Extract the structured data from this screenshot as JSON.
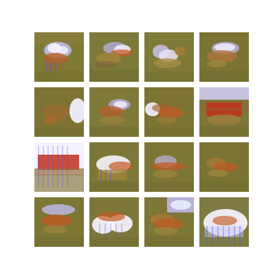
{
  "figure": {
    "kind": "generated-sample-grid",
    "rows": 4,
    "columns": 4,
    "background_color": "#ffffff",
    "palette": {
      "olive": "#7f7a35",
      "olive_dark": "#5f5a24",
      "ochre": "#a27d32",
      "rust": "#c35a24",
      "red": "#c32f1c",
      "white": "#f6f3ff",
      "lavender": "#b8b3ff",
      "blue": "#4f55d8",
      "pale_blue": "#e8edff"
    },
    "samples": [
      {
        "id": 1,
        "main_color": "lavender",
        "secondary_color": "rust",
        "noise": "high"
      },
      {
        "id": 2,
        "main_color": "lavender",
        "secondary_color": "rust",
        "noise": "medium"
      },
      {
        "id": 3,
        "main_color": "lavender",
        "secondary_color": "ochre",
        "noise": "high"
      },
      {
        "id": 4,
        "main_color": "lavender",
        "secondary_color": "ochre",
        "noise": "high"
      },
      {
        "id": 5,
        "main_color": "white",
        "secondary_color": "ochre",
        "noise": "medium"
      },
      {
        "id": 6,
        "main_color": "lavender",
        "secondary_color": "rust",
        "noise": "medium"
      },
      {
        "id": 7,
        "main_color": "white",
        "secondary_color": "rust",
        "noise": "medium"
      },
      {
        "id": 8,
        "main_color": "red",
        "secondary_color": "lavender",
        "noise": "medium"
      },
      {
        "id": 9,
        "main_color": "red",
        "secondary_color": "white",
        "noise": "high"
      },
      {
        "id": 10,
        "main_color": "white",
        "secondary_color": "rust",
        "noise": "medium"
      },
      {
        "id": 11,
        "main_color": "rust",
        "secondary_color": "lavender",
        "noise": "medium"
      },
      {
        "id": 12,
        "main_color": "rust",
        "secondary_color": "ochre",
        "noise": "medium"
      },
      {
        "id": 13,
        "main_color": "rust",
        "secondary_color": "lavender",
        "noise": "medium"
      },
      {
        "id": 14,
        "main_color": "white",
        "secondary_color": "rust",
        "noise": "high"
      },
      {
        "id": 15,
        "main_color": "lavender",
        "secondary_color": "rust",
        "noise": "high"
      },
      {
        "id": 16,
        "main_color": "white",
        "secondary_color": "lavender",
        "noise": "high"
      }
    ]
  }
}
